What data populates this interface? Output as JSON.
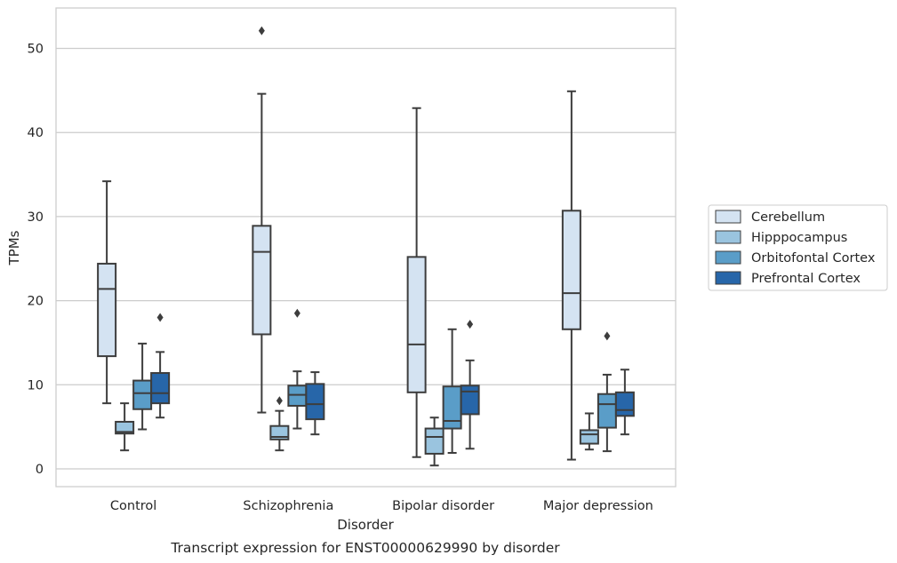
{
  "chart_data": {
    "type": "boxplot",
    "caption": "Transcript expression for ENST00000629990 by disorder",
    "xlabel": "Disorder",
    "ylabel": "TPMs",
    "ylim": [
      -2,
      55
    ],
    "yticks": [
      0,
      10,
      20,
      30,
      40,
      50
    ],
    "grid": "horizontal",
    "legend_position": "right",
    "categories": [
      "Control",
      "Schizophrenia",
      "Bipolar disorder",
      "Major depression"
    ],
    "series": [
      {
        "name": "Cerebellum",
        "color": "#d4e3f2",
        "boxes": [
          {
            "whislo": 7.8,
            "q1": 13.4,
            "med": 21.4,
            "q3": 24.4,
            "whishi": 34.2,
            "fliers": []
          },
          {
            "whislo": 6.7,
            "q1": 16.0,
            "med": 25.8,
            "q3": 28.9,
            "whishi": 44.6,
            "fliers": [
              52.1
            ]
          },
          {
            "whislo": 1.4,
            "q1": 9.1,
            "med": 14.8,
            "q3": 25.2,
            "whishi": 42.9,
            "fliers": []
          },
          {
            "whislo": 1.1,
            "q1": 16.6,
            "med": 20.9,
            "q3": 30.7,
            "whishi": 44.9,
            "fliers": []
          }
        ]
      },
      {
        "name": "Hipppocampus",
        "color": "#9ac4df",
        "boxes": [
          {
            "whislo": 2.2,
            "q1": 4.2,
            "med": 4.4,
            "q3": 5.6,
            "whishi": 7.8,
            "fliers": []
          },
          {
            "whislo": 2.2,
            "q1": 3.5,
            "med": 3.8,
            "q3": 5.1,
            "whishi": 6.9,
            "fliers": [
              8.1
            ]
          },
          {
            "whislo": 0.4,
            "q1": 1.8,
            "med": 3.8,
            "q3": 4.8,
            "whishi": 6.1,
            "fliers": []
          },
          {
            "whislo": 2.3,
            "q1": 3.0,
            "med": 4.1,
            "q3": 4.6,
            "whishi": 6.6,
            "fliers": []
          }
        ]
      },
      {
        "name": "Orbitofontal Cortex",
        "color": "#5a9dc8",
        "boxes": [
          {
            "whislo": 4.7,
            "q1": 7.1,
            "med": 9.0,
            "q3": 10.5,
            "whishi": 14.9,
            "fliers": []
          },
          {
            "whislo": 4.8,
            "q1": 7.5,
            "med": 8.8,
            "q3": 9.9,
            "whishi": 11.6,
            "fliers": [
              18.5
            ]
          },
          {
            "whislo": 1.9,
            "q1": 4.8,
            "med": 5.7,
            "q3": 9.8,
            "whishi": 16.6,
            "fliers": []
          },
          {
            "whislo": 2.1,
            "q1": 4.9,
            "med": 7.7,
            "q3": 8.9,
            "whishi": 11.2,
            "fliers": [
              15.8
            ]
          }
        ]
      },
      {
        "name": "Prefrontal Cortex",
        "color": "#2766a9",
        "boxes": [
          {
            "whislo": 6.1,
            "q1": 7.8,
            "med": 9.0,
            "q3": 11.4,
            "whishi": 13.9,
            "fliers": [
              18.0
            ]
          },
          {
            "whislo": 4.1,
            "q1": 5.9,
            "med": 7.7,
            "q3": 10.1,
            "whishi": 11.5,
            "fliers": []
          },
          {
            "whislo": 2.4,
            "q1": 6.5,
            "med": 9.2,
            "q3": 9.9,
            "whishi": 12.9,
            "fliers": [
              17.2
            ]
          },
          {
            "whislo": 4.1,
            "q1": 6.3,
            "med": 7.0,
            "q3": 9.1,
            "whishi": 11.8,
            "fliers": []
          }
        ]
      }
    ]
  }
}
